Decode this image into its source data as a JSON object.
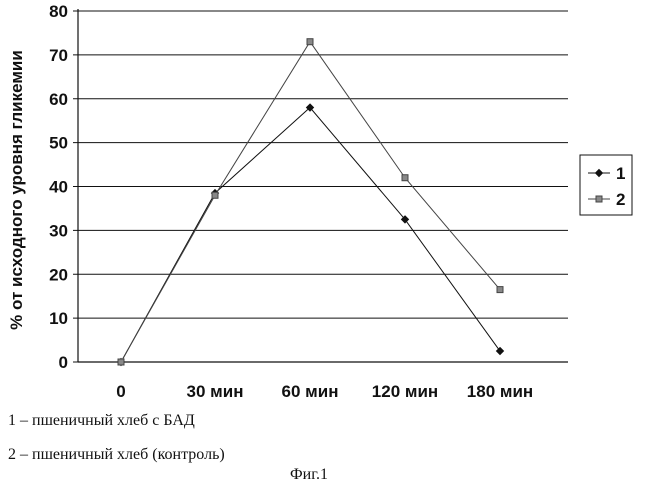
{
  "chart_data": {
    "type": "line",
    "categories": [
      "0",
      "30 мин",
      "60 мин",
      "120 мин",
      "180 мин"
    ],
    "ylabel": "% от исходного уровня гликемии",
    "ylim": [
      0,
      80
    ],
    "yticks": [
      0,
      10,
      20,
      30,
      40,
      50,
      60,
      70,
      80
    ],
    "grid": true,
    "legend_position": "right",
    "series": [
      {
        "name": "1",
        "values": [
          0,
          38.5,
          58,
          32.5,
          2.5
        ],
        "marker": "diamond",
        "color": "#111111"
      },
      {
        "name": "2",
        "values": [
          0,
          38,
          73,
          42,
          16.5
        ],
        "marker": "square",
        "color": "#444444"
      }
    ]
  },
  "captions": {
    "line1": "1 – пшеничный хлеб с БАД",
    "line2": "2 – пшеничный хлеб (контроль)",
    "figure": "Фиг.1"
  }
}
